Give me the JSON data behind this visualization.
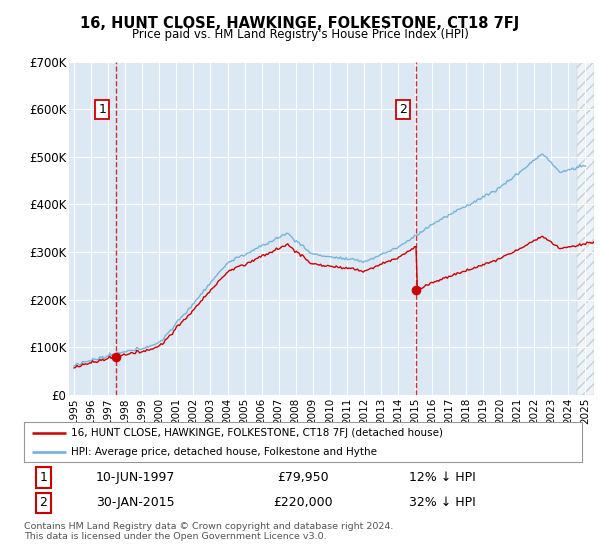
{
  "title": "16, HUNT CLOSE, HAWKINGE, FOLKESTONE, CT18 7FJ",
  "subtitle": "Price paid vs. HM Land Registry's House Price Index (HPI)",
  "plot_bg_color": "#dce9f5",
  "hpi_color": "#6baed6",
  "price_color": "#cc0000",
  "purchase1_date": 1997.46,
  "purchase1_price": 79950,
  "purchase2_date": 2015.08,
  "purchase2_price": 220000,
  "ylim": [
    0,
    700000
  ],
  "yticks": [
    0,
    100000,
    200000,
    300000,
    400000,
    500000,
    600000,
    700000
  ],
  "ytick_labels": [
    "£0",
    "£100K",
    "£200K",
    "£300K",
    "£400K",
    "£500K",
    "£600K",
    "£700K"
  ],
  "xlim_start": 1994.7,
  "xlim_end": 2025.5,
  "xticks": [
    1995,
    1996,
    1997,
    1998,
    1999,
    2000,
    2001,
    2002,
    2003,
    2004,
    2005,
    2006,
    2007,
    2008,
    2009,
    2010,
    2011,
    2012,
    2013,
    2014,
    2015,
    2016,
    2017,
    2018,
    2019,
    2020,
    2021,
    2022,
    2023,
    2024,
    2025
  ],
  "legend_price_label": "16, HUNT CLOSE, HAWKINGE, FOLKESTONE, CT18 7FJ (detached house)",
  "legend_hpi_label": "HPI: Average price, detached house, Folkestone and Hythe",
  "note1_num": "1",
  "note1_date": "10-JUN-1997",
  "note1_price": "£79,950",
  "note1_pct": "12% ↓ HPI",
  "note2_num": "2",
  "note2_date": "30-JAN-2015",
  "note2_price": "£220,000",
  "note2_pct": "32% ↓ HPI",
  "footer": "Contains HM Land Registry data © Crown copyright and database right 2024.\nThis data is licensed under the Open Government Licence v3.0.",
  "hatch_start": 2024.5
}
